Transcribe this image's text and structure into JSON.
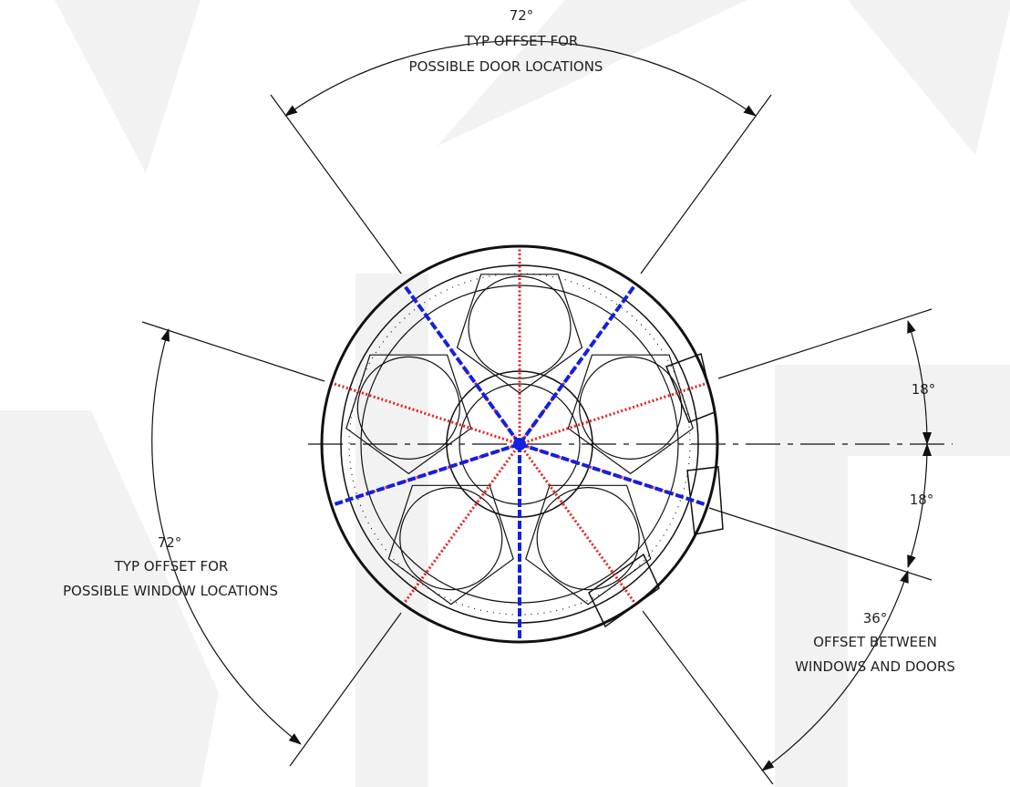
{
  "colors": {
    "door_axis": "#1220e0",
    "window_axis": "#e8201c",
    "linework": "#111111",
    "watermark": "#f2f2f2",
    "background": "#ffffff"
  },
  "dimensions": {
    "door_offset": {
      "angle": "72°",
      "line1": "TYP OFFSET FOR",
      "line2": "POSSIBLE DOOR LOCATIONS"
    },
    "window_offset": {
      "angle": "72°",
      "line1": "TYP OFFSET FOR",
      "line2": "POSSIBLE WINDOW LOCATIONS"
    },
    "upper_half_angle": "18°",
    "lower_half_angle": "18°",
    "window_door_offset": {
      "angle": "36°",
      "line1": "OFFSET BETWEEN",
      "line2": "WINDOWS AND DOORS"
    }
  }
}
